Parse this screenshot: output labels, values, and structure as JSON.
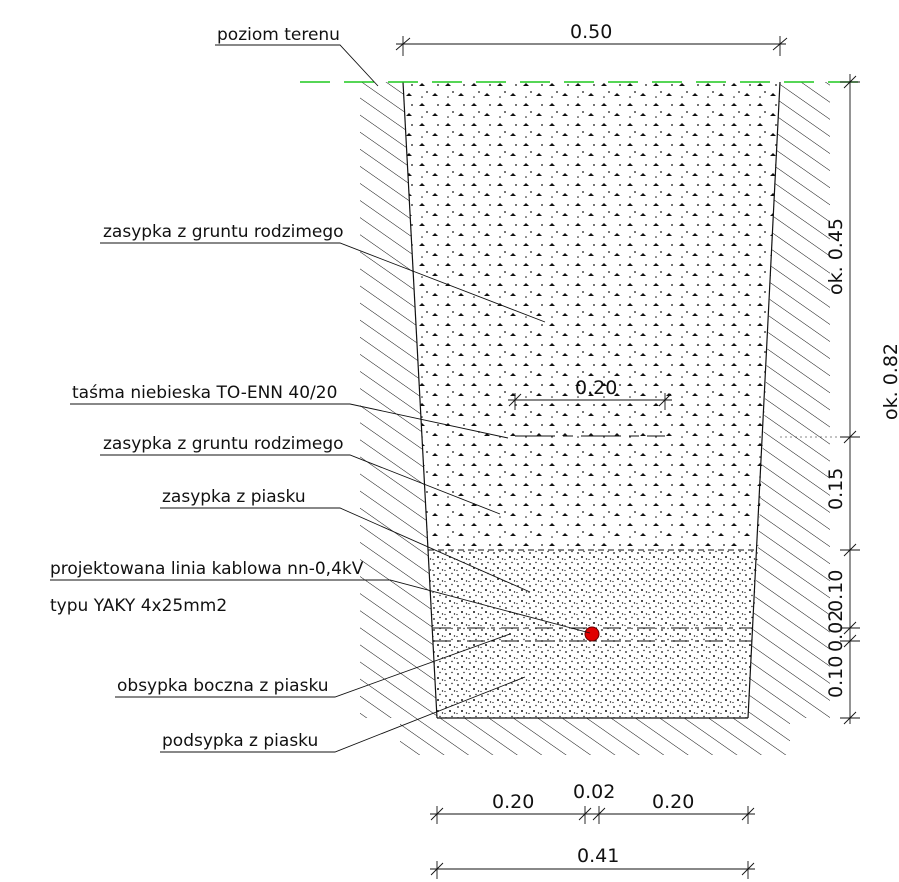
{
  "labels": {
    "ground_level": "poziom terenu",
    "backfill_top": "zasypka z gruntu rodzimego",
    "warning_tape": "taśma niebieska TO-ENN 40/20",
    "backfill_mid": "zasypka z gruntu rodzimego",
    "sand_fill": "zasypka z piasku",
    "cable_line1": "projektowana linia kablowa nn-0,4kV",
    "cable_line2": "typu YAKY 4x25mm2",
    "side_bedding": "obsypka boczna z piasku",
    "bottom_bedding": "podsypka z piasku"
  },
  "dimensions": {
    "top_width": "0.50",
    "tape_width": "0.20",
    "depth_upper": "ok. 0.45",
    "depth_total": "ok. 0.82",
    "layer_015": "0.15",
    "layer_010_top": "0.10",
    "layer_002": "0.02",
    "layer_010_bottom": "0.10",
    "bottom_left": "0.20",
    "bottom_mid": "0.02",
    "bottom_right": "0.20",
    "bottom_total": "0.41"
  },
  "colors": {
    "ground_line": "#1ec81e",
    "cable": "#e00000"
  }
}
